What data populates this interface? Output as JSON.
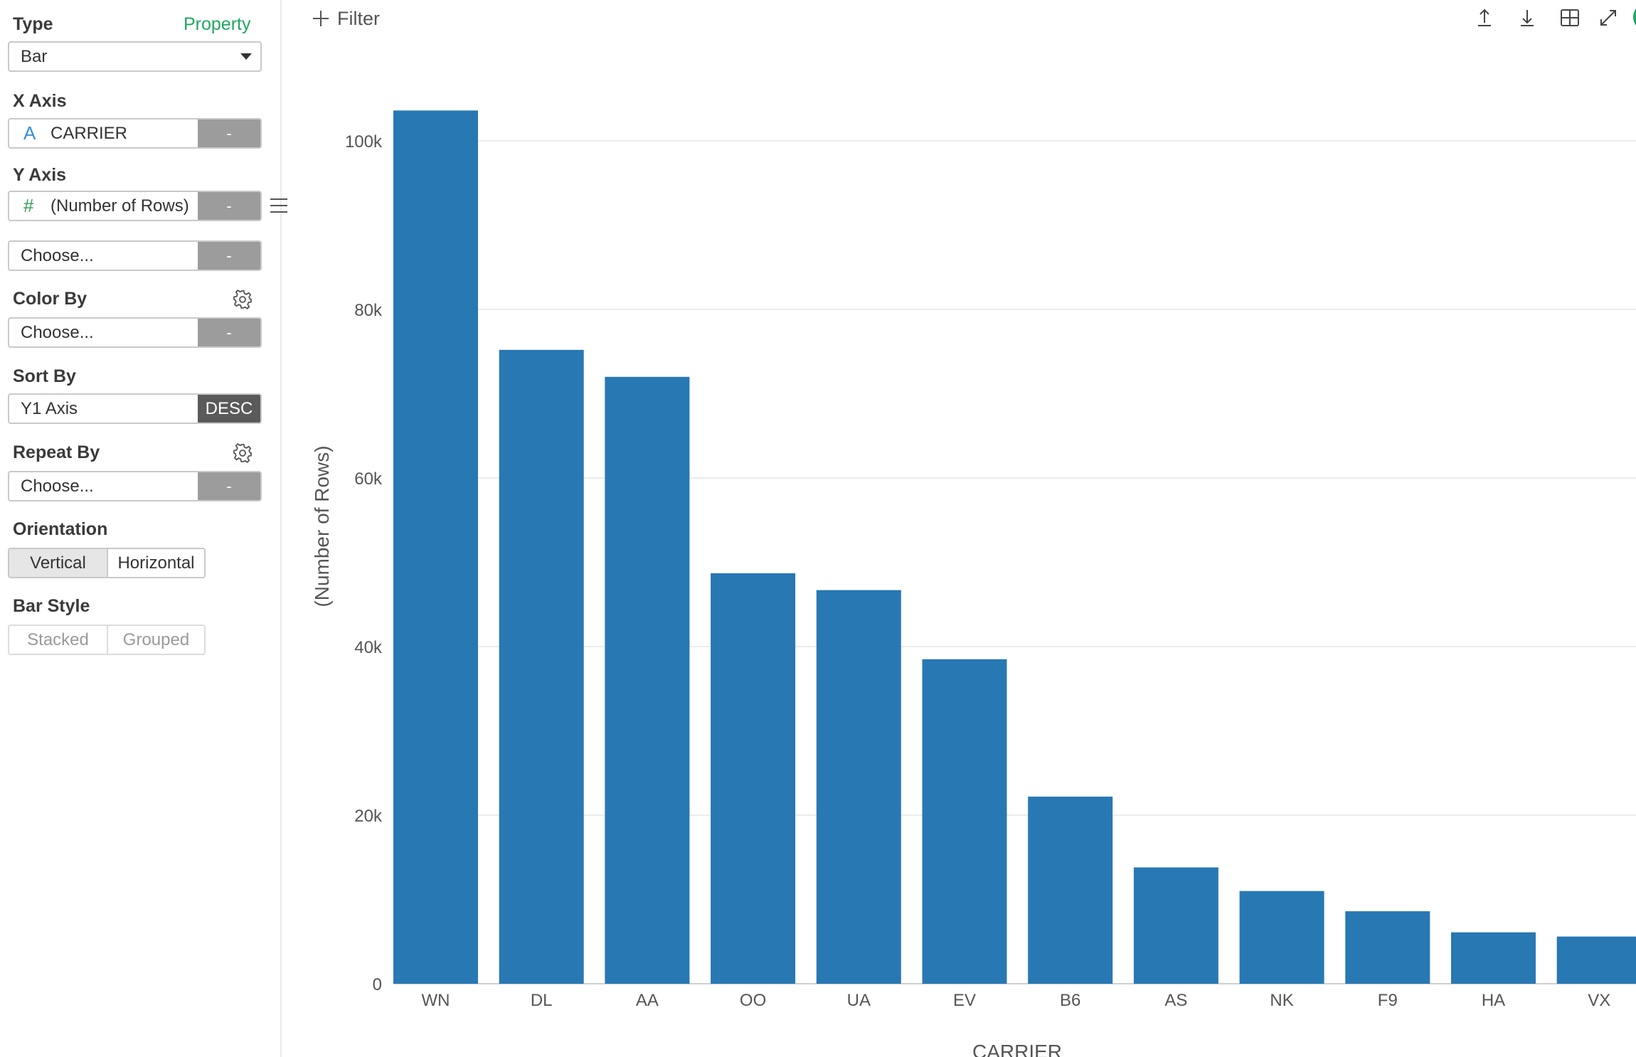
{
  "sidebar": {
    "type_label": "Type",
    "property_link": "Property",
    "type_value": "Bar",
    "x_axis_label": "X Axis",
    "x_axis_icon": "A",
    "x_axis_value": "CARRIER",
    "y_axis_label": "Y Axis",
    "y_axis_icon": "#",
    "y_axis_value": "(Number of Rows)",
    "y_axis_second_placeholder": "Choose...",
    "color_by_label": "Color By",
    "color_by_value": "Choose...",
    "sort_by_label": "Sort By",
    "sort_by_value": "Y1 Axis",
    "sort_order": "DESC",
    "repeat_by_label": "Repeat By",
    "repeat_by_value": "Choose...",
    "orientation_label": "Orientation",
    "orientation_options": [
      "Vertical",
      "Horizontal"
    ],
    "orientation_selected": "Vertical",
    "bar_style_label": "Bar Style",
    "bar_style_options": [
      "Stacked",
      "Grouped"
    ],
    "remove_label": "-"
  },
  "toolbar": {
    "filter_label": "Filter",
    "icons": [
      "upload-icon",
      "download-icon",
      "grid-icon",
      "expand-icon"
    ]
  },
  "colors": {
    "bar": "#2878b4",
    "accent": "#1fa861"
  },
  "chart_data": {
    "type": "bar",
    "categories": [
      "WN",
      "DL",
      "AA",
      "OO",
      "UA",
      "EV",
      "B6",
      "AS",
      "NK",
      "F9",
      "HA",
      "VX"
    ],
    "values": [
      103600,
      75200,
      72000,
      48700,
      46700,
      38500,
      22200,
      13800,
      11000,
      8600,
      6100,
      5600
    ],
    "xlabel": "CARRIER",
    "ylabel": "(Number of Rows)",
    "ylim": [
      0,
      108000
    ],
    "yticks": [
      0,
      20000,
      40000,
      60000,
      80000,
      100000
    ],
    "ytick_labels": [
      "0",
      "20k",
      "40k",
      "60k",
      "80k",
      "100k"
    ],
    "grid": true,
    "legend": "none"
  }
}
